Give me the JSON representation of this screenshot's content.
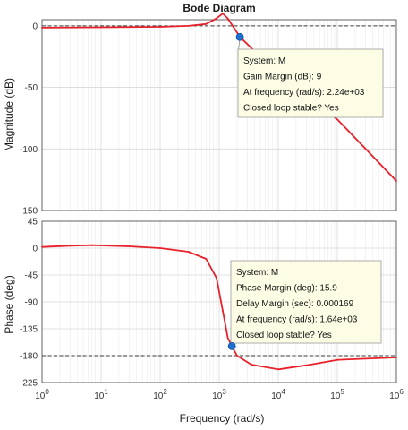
{
  "chart_data": [
    {
      "type": "line",
      "title": "Bode Diagram",
      "ylabel": "Magnitude (dB)",
      "xscale": "log",
      "xlim": [
        1,
        1000000
      ],
      "ylim": [
        -150,
        5
      ],
      "yticks": [
        0,
        -50,
        -100,
        -150
      ],
      "grid": true,
      "reference_line": 0,
      "series": [
        {
          "color": "#e8202a",
          "points": [
            [
              1,
              -1.5
            ],
            [
              10,
              -1.2
            ],
            [
              100,
              -0.8
            ],
            [
              300,
              0
            ],
            [
              600,
              1.5
            ],
            [
              900,
              6
            ],
            [
              1150,
              10
            ],
            [
              1400,
              6
            ],
            [
              1800,
              -2
            ],
            [
              2240,
              -9
            ],
            [
              3500,
              -18
            ],
            [
              10000,
              -40
            ],
            [
              100000,
              -76
            ],
            [
              1000000,
              -126
            ]
          ]
        }
      ],
      "marker": {
        "x": 2240,
        "y": -9
      },
      "annotation": {
        "lines": [
          "System: M",
          "Gain Margin (dB): 9",
          "At frequency (rad/s): 2.24e+03",
          "Closed loop stable? Yes"
        ]
      }
    },
    {
      "type": "line",
      "ylabel": "Phase (deg)",
      "xlabel": "Frequency  (rad/s)",
      "xscale": "log",
      "xlim": [
        1,
        1000000
      ],
      "ylim": [
        -225,
        45
      ],
      "yticks": [
        45,
        0,
        -45,
        -90,
        -135,
        -180,
        -225
      ],
      "xticks": [
        1,
        10,
        100,
        1000,
        10000,
        100000,
        1000000
      ],
      "xtick_labels": [
        {
          "base": "10",
          "exp": "0"
        },
        {
          "base": "10",
          "exp": "1"
        },
        {
          "base": "10",
          "exp": "2"
        },
        {
          "base": "10",
          "exp": "3"
        },
        {
          "base": "10",
          "exp": "4"
        },
        {
          "base": "10",
          "exp": "5"
        },
        {
          "base": "10",
          "exp": "6"
        }
      ],
      "grid": true,
      "reference_line": -180,
      "series": [
        {
          "color": "#e8202a",
          "points": [
            [
              1,
              2
            ],
            [
              3,
              4
            ],
            [
              7,
              5
            ],
            [
              30,
              3
            ],
            [
              100,
              0
            ],
            [
              300,
              -6
            ],
            [
              600,
              -18
            ],
            [
              900,
              -50
            ],
            [
              1150,
              -105
            ],
            [
              1400,
              -150
            ],
            [
              1640,
              -164.1
            ],
            [
              2000,
              -180
            ],
            [
              3500,
              -195
            ],
            [
              10000,
              -203
            ],
            [
              30000,
              -196
            ],
            [
              100000,
              -187
            ],
            [
              1000000,
              -183
            ]
          ]
        }
      ],
      "marker": {
        "x": 1640,
        "y": -164.1
      },
      "annotation": {
        "lines": [
          "System: M",
          "Phase Margin (deg): 15.9",
          "Delay Margin (sec): 0.000169",
          "At frequency (rad/s): 1.64e+03",
          "Closed loop stable? Yes"
        ]
      }
    }
  ]
}
